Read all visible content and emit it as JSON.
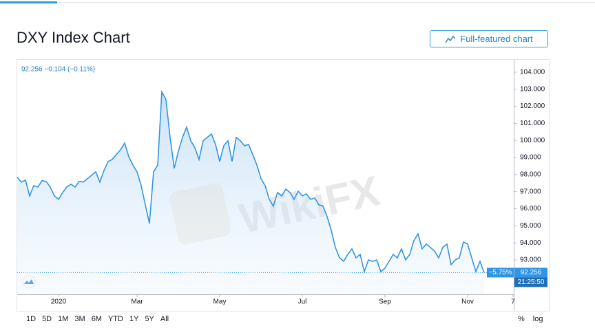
{
  "header": {
    "title": "DXY Index Chart",
    "button": "Full-featured chart"
  },
  "widget": {
    "quote": "92.256 −0.104 (−0.11%)",
    "last_price": "92.256",
    "change_pct": "−5.75%",
    "time": "21:25:50",
    "ranges": [
      "1D",
      "5D",
      "1M",
      "3M",
      "6M",
      "YTD",
      "1Y",
      "5Y",
      "All"
    ],
    "percent": "%",
    "log": "log"
  },
  "watermark": "WikiFX",
  "chart_data": {
    "type": "line",
    "color": "#2f96e6",
    "grid": false,
    "categories": [
      null,
      null,
      null,
      null,
      null,
      null,
      null,
      null,
      null,
      null,
      "2020",
      null,
      null,
      null,
      null,
      null,
      null,
      null,
      null,
      null,
      null,
      null,
      null,
      null,
      null,
      null,
      null,
      null,
      null,
      "Mar",
      null,
      null,
      null,
      null,
      null,
      null,
      null,
      null,
      null,
      null,
      null,
      null,
      null,
      null,
      null,
      null,
      null,
      null,
      null,
      "May",
      null,
      null,
      null,
      null,
      null,
      null,
      null,
      null,
      null,
      null,
      null,
      null,
      null,
      null,
      null,
      null,
      null,
      null,
      null,
      "Jul",
      null,
      null,
      null,
      null,
      null,
      null,
      null,
      null,
      null,
      null,
      null,
      null,
      null,
      null,
      null,
      null,
      null,
      null,
      null,
      "Sep",
      null,
      null,
      null,
      null,
      null,
      null,
      null,
      null,
      null,
      null,
      null,
      null,
      null,
      null,
      null,
      null,
      null,
      null,
      null,
      "Nov",
      null,
      null,
      null,
      null,
      null,
      null,
      null,
      null,
      null,
      null,
      "7"
    ],
    "values": [
      97.84,
      97.56,
      97.68,
      96.75,
      97.35,
      97.27,
      97.64,
      97.6,
      97.27,
      96.75,
      96.55,
      96.95,
      97.27,
      97.44,
      97.27,
      97.6,
      97.56,
      97.76,
      97.96,
      98.16,
      97.56,
      98.24,
      98.77,
      98.89,
      99.17,
      99.45,
      99.85,
      99.05,
      98.56,
      98.16,
      97.35,
      96.23,
      95.14,
      98.16,
      98.56,
      102.85,
      102.4,
      100.18,
      98.36,
      99.37,
      100.18,
      100.78,
      99.98,
      99.57,
      98.89,
      99.98,
      100.18,
      100.38,
      99.77,
      98.77,
      99.69,
      99.98,
      98.77,
      100.18,
      99.98,
      99.69,
      99.77,
      99.17,
      98.56,
      97.76,
      97.35,
      96.55,
      96.15,
      96.95,
      96.75,
      97.15,
      96.95,
      96.55,
      97.03,
      96.75,
      96.87,
      96.55,
      96.63,
      96.23,
      96.15,
      95.54,
      94.73,
      93.73,
      93.12,
      92.92,
      93.32,
      93.65,
      93.12,
      93.32,
      92.31,
      93.0,
      92.92,
      93.0,
      92.31,
      92.52,
      92.92,
      93.32,
      93.12,
      93.65,
      93.0,
      93.32,
      94.13,
      94.53,
      93.65,
      93.93,
      93.73,
      93.52,
      93.12,
      93.73,
      93.93,
      92.72,
      93.0,
      93.12,
      94.05,
      93.93,
      93.12,
      92.31,
      92.92,
      92.256,
      null,
      null,
      null,
      null,
      null,
      null,
      null
    ],
    "ylim": [
      91,
      104.7
    ],
    "yticks": [
      {
        "value": 93,
        "label": "93.000"
      },
      {
        "value": 94,
        "label": "94.000"
      },
      {
        "value": 95,
        "label": "95.000"
      },
      {
        "value": 96,
        "label": "96.000"
      },
      {
        "value": 97,
        "label": "97.000"
      },
      {
        "value": 98,
        "label": "98.000"
      },
      {
        "value": 99,
        "label": "99.000"
      },
      {
        "value": 100,
        "label": "100.000"
      },
      {
        "value": 101,
        "label": "101.000"
      },
      {
        "value": 102,
        "label": "102.000"
      },
      {
        "value": 103,
        "label": "103.000"
      },
      {
        "value": 104,
        "label": "104.000"
      }
    ]
  }
}
